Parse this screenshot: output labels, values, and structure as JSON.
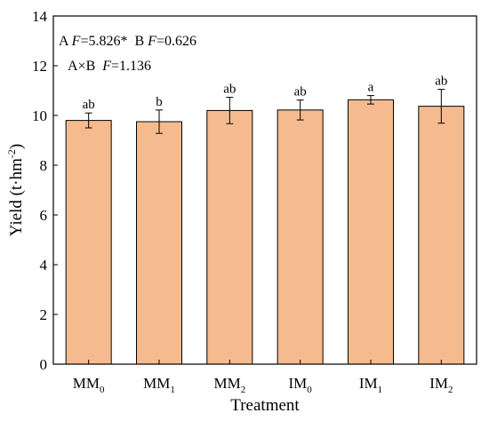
{
  "chart_data": {
    "type": "bar",
    "xlabel": "Treatment",
    "ylabel": "Yield (t·hm",
    "ylabel_sup": "-2",
    "ylabel_close": ")",
    "ylim": [
      0,
      14
    ],
    "yticks": [
      0,
      2,
      4,
      6,
      8,
      10,
      12,
      14
    ],
    "grid": false,
    "bar_color": "#f5bb8f",
    "categories": [
      {
        "base": "MM",
        "sub": "0"
      },
      {
        "base": "MM",
        "sub": "1"
      },
      {
        "base": "MM",
        "sub": "2"
      },
      {
        "base": "IM",
        "sub": "0"
      },
      {
        "base": "IM",
        "sub": "1"
      },
      {
        "base": "IM",
        "sub": "2"
      }
    ],
    "values": [
      9.8,
      9.75,
      10.2,
      10.22,
      10.63,
      10.37
    ],
    "errors": [
      0.3,
      0.47,
      0.53,
      0.4,
      0.17,
      0.68
    ],
    "letters": [
      "ab",
      "b",
      "ab",
      "ab",
      "a",
      "ab"
    ],
    "annotations": {
      "line1_a_prefix": "A ",
      "line1_a_var": "F",
      "line1_a_value": "=5.826*",
      "line1_b_prefix": "  B ",
      "line1_b_var": "F",
      "line1_b_value": "=0.626",
      "line2_prefix": "A×B  ",
      "line2_var": "F",
      "line2_value": "=1.136"
    }
  }
}
